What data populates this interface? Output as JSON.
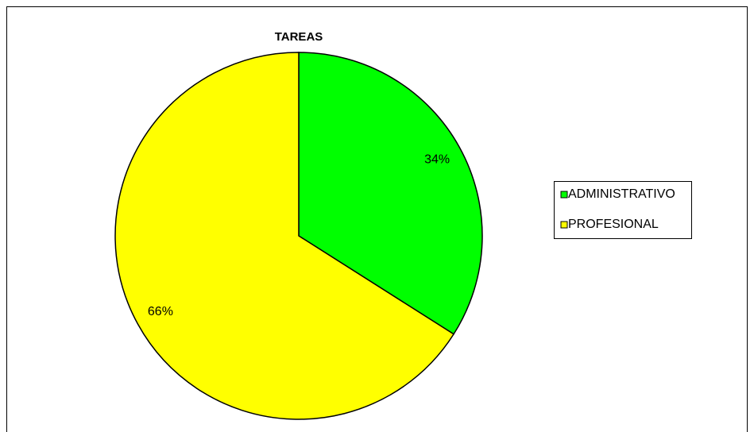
{
  "chart_data": {
    "type": "pie",
    "title": "TAREAS",
    "categories": [
      "ADMINISTRATIVO",
      "PROFESIONAL"
    ],
    "values": [
      34,
      66
    ],
    "value_labels": [
      "34%",
      "66%"
    ],
    "colors": [
      "#00ff00",
      "#ffff00"
    ],
    "legend": "right"
  }
}
